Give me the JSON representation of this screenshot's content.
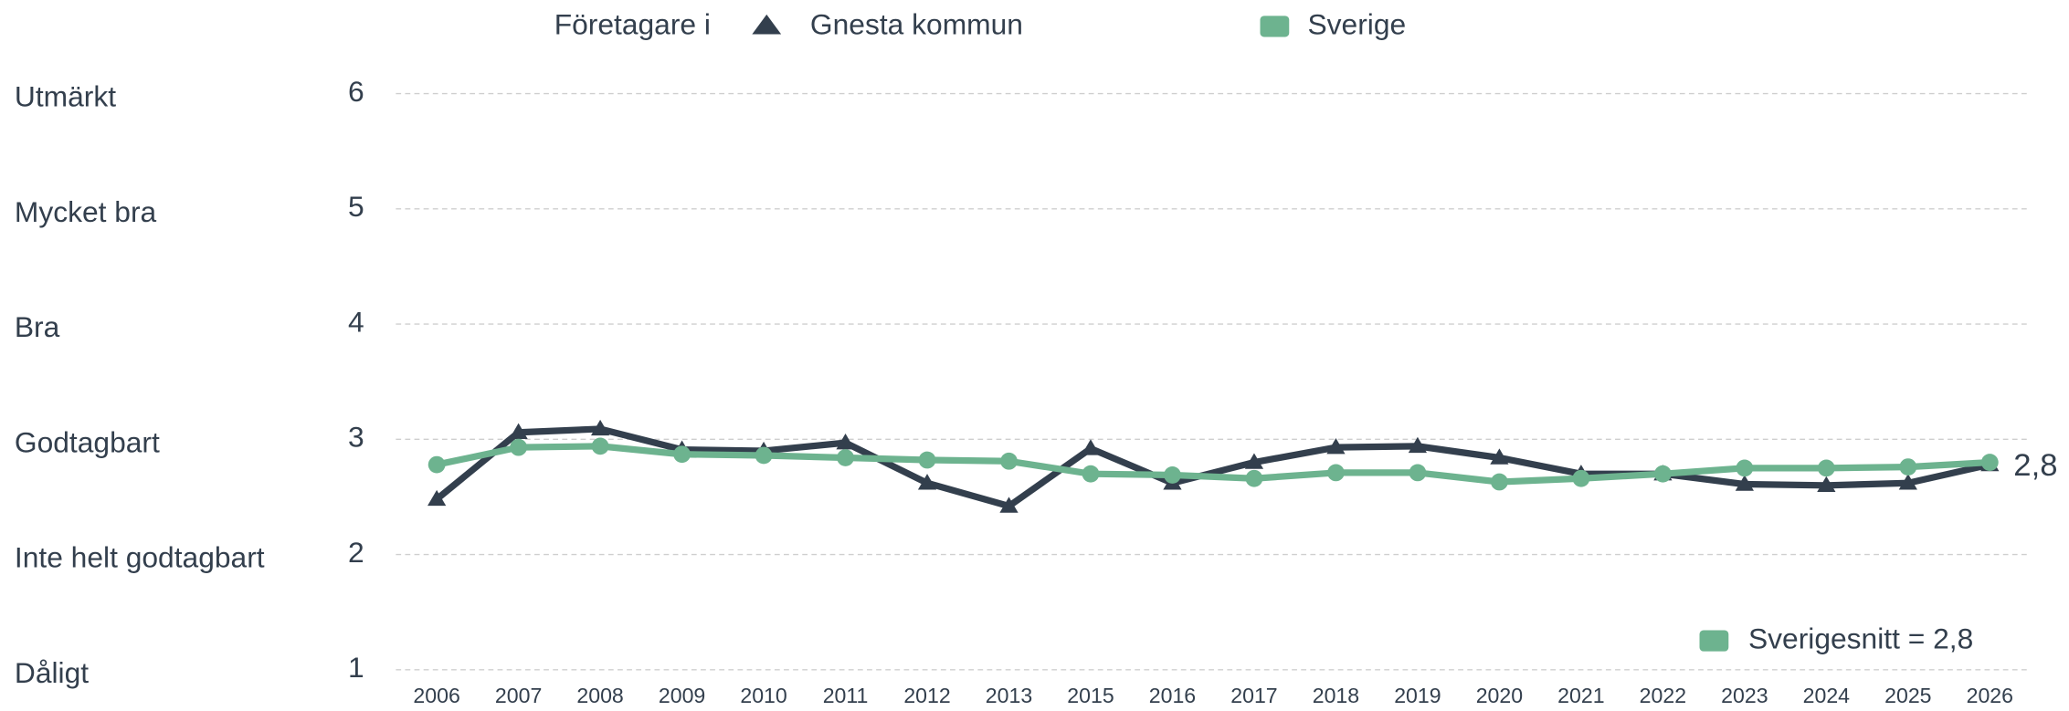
{
  "chart_data": {
    "type": "line",
    "legend_prefix": "Företagare i",
    "categories": [
      "2006",
      "2007",
      "2008",
      "2009",
      "2010",
      "2011",
      "2012",
      "2013",
      "2015",
      "2016",
      "2017",
      "2018",
      "2019",
      "2020",
      "2021",
      "2022",
      "2023",
      "2024",
      "2025",
      "2026"
    ],
    "series": [
      {
        "name": "Gnesta kommun",
        "color": "#333f4d",
        "marker": "triangle",
        "values": [
          2.48,
          3.06,
          3.09,
          2.91,
          2.9,
          2.97,
          2.62,
          2.42,
          2.92,
          2.62,
          2.8,
          2.93,
          2.94,
          2.84,
          2.7,
          2.7,
          2.61,
          2.6,
          2.62,
          2.78
        ]
      },
      {
        "name": "Sverige",
        "color": "#6db38f",
        "marker": "circle",
        "values": [
          2.78,
          2.93,
          2.94,
          2.87,
          2.86,
          2.84,
          2.82,
          2.81,
          2.7,
          2.69,
          2.66,
          2.71,
          2.71,
          2.63,
          2.66,
          2.7,
          2.75,
          2.75,
          2.76,
          2.8
        ]
      }
    ],
    "ylim": [
      1,
      6
    ],
    "yticks": [
      1,
      2,
      3,
      4,
      5,
      6
    ],
    "ytick_names": [
      "Dåligt",
      "Inte helt godtagbart",
      "Godtagbart",
      "Bra",
      "Mycket bra",
      "Utmärkt"
    ],
    "grid": true,
    "end_label": "2,8",
    "average_note": "Sverigesnitt = 2,8"
  }
}
